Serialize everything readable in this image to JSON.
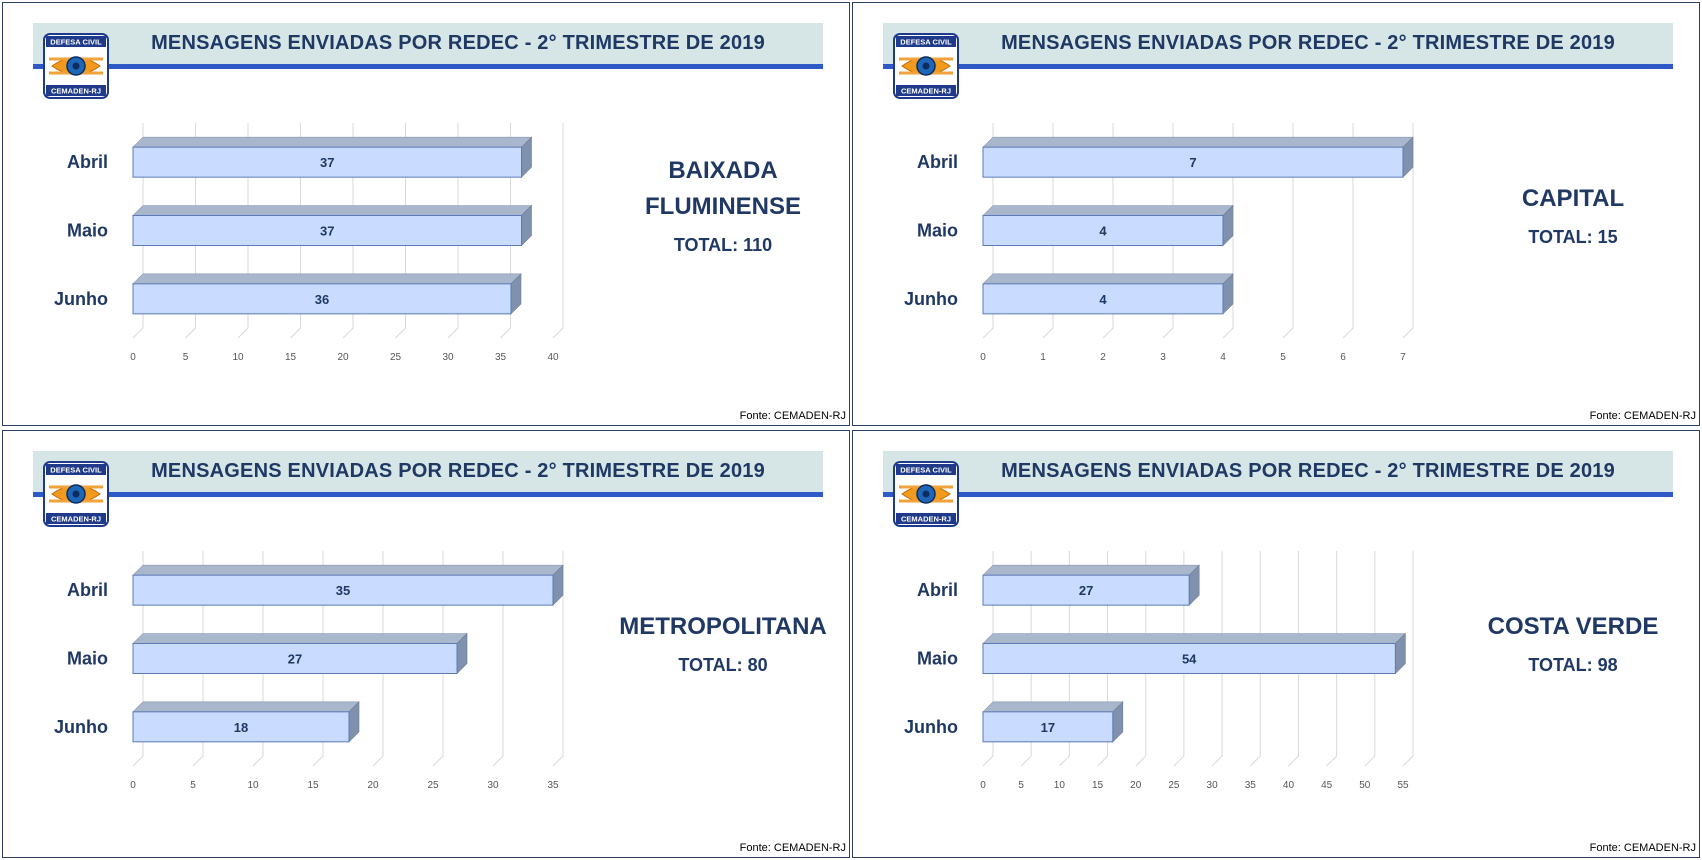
{
  "fonte": "Fonte: CEMADEN-RJ",
  "logo": {
    "top_text": "DEFESA CIVIL",
    "bottom_text": "CEMADEN-RJ"
  },
  "colors": {
    "header_bg": "#d6e6e6",
    "header_line": "#2f58c9",
    "title": "#1f3864",
    "bar_front": "#c9dcff",
    "bar_top": "#a9b7cc",
    "bar_side": "#7f91ad"
  },
  "panels": [
    {
      "title": "MENSAGENS ENVIADAS POR REDEC - 2° TRIMESTRE DE 2019",
      "region_line1": "BAIXADA",
      "region_line2": "FLUMINENSE",
      "total": "TOTAL: 110"
    },
    {
      "title": "MENSAGENS ENVIADAS POR REDEC - 2° TRIMESTRE DE 2019",
      "region_line1": "CAPITAL",
      "region_line2": "",
      "total": "TOTAL: 15"
    },
    {
      "title": "MENSAGENS ENVIADAS POR REDEC - 2° TRIMESTRE DE 2019",
      "region_line1": "METROPOLITANA",
      "region_line2": "",
      "total": "TOTAL: 80"
    },
    {
      "title": "MENSAGENS ENVIADAS POR REDEC - 2° TRIMESTRE DE 2019",
      "region_line1": "COSTA VERDE",
      "region_line2": "",
      "total": "TOTAL: 98"
    }
  ],
  "chart_data": [
    {
      "type": "bar",
      "orientation": "horizontal",
      "title": "MENSAGENS ENVIADAS POR REDEC - 2° TRIMESTRE DE 2019",
      "categories": [
        "Abril",
        "Maio",
        "Junho"
      ],
      "values": [
        37,
        37,
        36
      ],
      "xlim": [
        0,
        40
      ],
      "xticks": [
        0,
        5,
        10,
        15,
        20,
        25,
        30,
        35,
        40
      ],
      "grid": true
    },
    {
      "type": "bar",
      "orientation": "horizontal",
      "title": "MENSAGENS ENVIADAS POR REDEC - 2° TRIMESTRE DE 2019",
      "categories": [
        "Abril",
        "Maio",
        "Junho"
      ],
      "values": [
        7,
        4,
        4
      ],
      "xlim": [
        0,
        7
      ],
      "xticks": [
        0,
        1,
        2,
        3,
        4,
        5,
        6,
        7
      ],
      "grid": true
    },
    {
      "type": "bar",
      "orientation": "horizontal",
      "title": "MENSAGENS ENVIADAS POR REDEC - 2° TRIMESTRE DE 2019",
      "categories": [
        "Abril",
        "Maio",
        "Junho"
      ],
      "values": [
        35,
        27,
        18
      ],
      "xlim": [
        0,
        35
      ],
      "xticks": [
        0,
        5,
        10,
        15,
        20,
        25,
        30,
        35
      ],
      "grid": true
    },
    {
      "type": "bar",
      "orientation": "horizontal",
      "title": "MENSAGENS ENVIADAS POR REDEC - 2° TRIMESTRE DE 2019",
      "categories": [
        "Abril",
        "Maio",
        "Junho"
      ],
      "values": [
        27,
        54,
        17
      ],
      "xlim": [
        0,
        55
      ],
      "xticks": [
        0,
        5,
        10,
        15,
        20,
        25,
        30,
        35,
        40,
        45,
        50,
        55
      ],
      "grid": true
    }
  ]
}
